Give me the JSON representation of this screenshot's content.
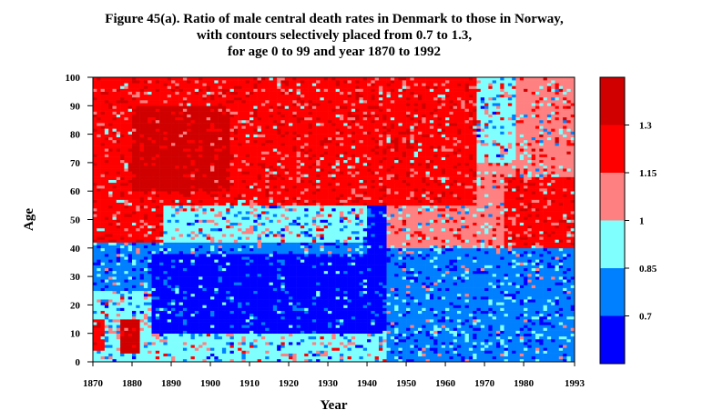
{
  "chart_data": {
    "type": "heatmap",
    "title_lines": [
      "Figure 45(a). Ratio of male central death rates in Denmark to those in Norway,",
      "with contours selectively placed from 0.7 to 1.3,",
      "for age 0 to 99 and year 1870 to 1992"
    ],
    "xlabel": "Year",
    "ylabel": "Age",
    "xlim": [
      1870,
      1993
    ],
    "ylim": [
      0,
      100
    ],
    "x_ticks": [
      {
        "value": 1870,
        "label": "1870"
      },
      {
        "value": 1880,
        "label": "1880"
      },
      {
        "value": 1890,
        "label": "1890"
      },
      {
        "value": 1900,
        "label": "1900"
      },
      {
        "value": 1910,
        "label": "1910"
      },
      {
        "value": 1920,
        "label": "1920"
      },
      {
        "value": 1930,
        "label": "1930"
      },
      {
        "value": 1940,
        "label": "1940"
      },
      {
        "value": 1950,
        "label": "1950"
      },
      {
        "value": 1960,
        "label": "1960"
      },
      {
        "value": 1970,
        "label": "1970"
      },
      {
        "value": 1980,
        "label": "1980"
      },
      {
        "value": 1993,
        "label": "1993"
      }
    ],
    "y_ticks": [
      {
        "value": 0,
        "label": "0"
      },
      {
        "value": 10,
        "label": "10"
      },
      {
        "value": 20,
        "label": "20"
      },
      {
        "value": 30,
        "label": "30"
      },
      {
        "value": 40,
        "label": "40"
      },
      {
        "value": 50,
        "label": "50"
      },
      {
        "value": 60,
        "label": "60"
      },
      {
        "value": 70,
        "label": "70"
      },
      {
        "value": 80,
        "label": "80"
      },
      {
        "value": 90,
        "label": "90"
      },
      {
        "value": 100,
        "label": "100"
      }
    ],
    "color_scale": {
      "bands": [
        {
          "range": "< 0.7",
          "color": "#0000ff"
        },
        {
          "range": "0.7 - 0.85",
          "color": "#0080ff"
        },
        {
          "range": "0.85 - 1",
          "color": "#80ffff"
        },
        {
          "range": "1 - 1.15",
          "color": "#ff8080"
        },
        {
          "range": "1.15 - 1.3",
          "color": "#ff0000"
        },
        {
          "range": "> 1.3",
          "color": "#d00000"
        }
      ],
      "boundary_labels": [
        "0.7",
        "0.85",
        "1",
        "1.15",
        "1.3"
      ]
    },
    "regions": [
      {
        "x": [
          1870,
          1993
        ],
        "y": [
          0,
          100
        ],
        "band": 3
      },
      {
        "x": [
          1870,
          1925
        ],
        "y": [
          52,
          100
        ],
        "band": 4
      },
      {
        "x": [
          1880,
          1905
        ],
        "y": [
          60,
          90
        ],
        "band": 5
      },
      {
        "x": [
          1870,
          1888
        ],
        "y": [
          38,
          52
        ],
        "band": 4
      },
      {
        "x": [
          1905,
          1945
        ],
        "y": [
          50,
          100
        ],
        "band": 4
      },
      {
        "x": [
          1945,
          1968
        ],
        "y": [
          55,
          100
        ],
        "band": 4
      },
      {
        "x": [
          1968,
          1978
        ],
        "y": [
          70,
          100
        ],
        "band": 2
      },
      {
        "x": [
          1978,
          1993
        ],
        "y": [
          80,
          100
        ],
        "band": 3
      },
      {
        "x": [
          1975,
          1993
        ],
        "y": [
          30,
          65
        ],
        "band": 4
      },
      {
        "x": [
          1888,
          1945
        ],
        "y": [
          35,
          55
        ],
        "band": 2
      },
      {
        "x": [
          1870,
          1890
        ],
        "y": [
          25,
          42
        ],
        "band": 1
      },
      {
        "x": [
          1890,
          1940
        ],
        "y": [
          28,
          42
        ],
        "band": 1
      },
      {
        "x": [
          1885,
          1945
        ],
        "y": [
          10,
          38
        ],
        "band": 0
      },
      {
        "x": [
          1940,
          1945
        ],
        "y": [
          0,
          55
        ],
        "band": 0
      },
      {
        "x": [
          1945,
          1993
        ],
        "y": [
          0,
          40
        ],
        "band": 1
      },
      {
        "x": [
          1870,
          1885
        ],
        "y": [
          0,
          25
        ],
        "band": 2
      },
      {
        "x": [
          1877,
          1882
        ],
        "y": [
          3,
          15
        ],
        "band": 5
      },
      {
        "x": [
          1870,
          1873
        ],
        "y": [
          4,
          15
        ],
        "band": 4
      },
      {
        "x": [
          1885,
          1945
        ],
        "y": [
          0,
          10
        ],
        "band": 2
      }
    ]
  }
}
